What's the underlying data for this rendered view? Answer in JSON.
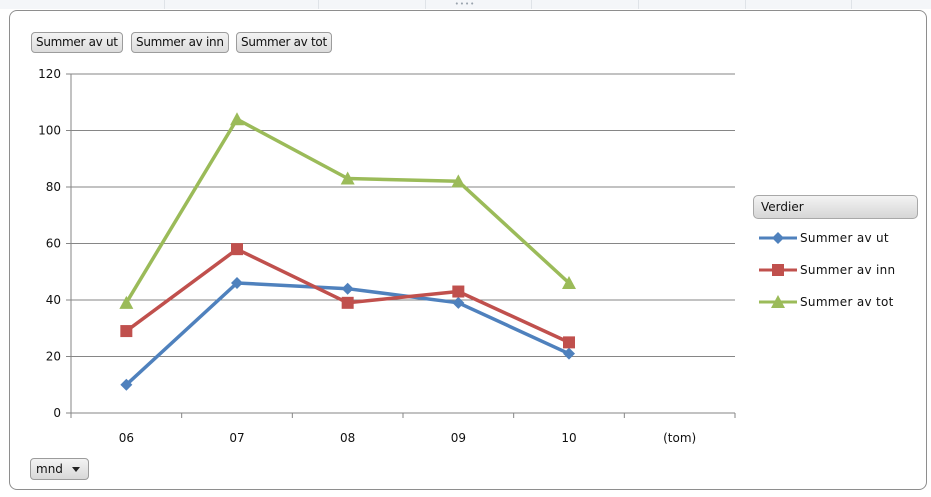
{
  "field_buttons": [
    "Summer av ut",
    "Summer av inn",
    "Summer av tot"
  ],
  "legend": {
    "title": "Verdier",
    "position": "right"
  },
  "axis_field": {
    "label": "mnd",
    "icon": "chevron-down-icon"
  },
  "chart_data": {
    "type": "line",
    "categories": [
      "06",
      "07",
      "08",
      "09",
      "10",
      "(tom)"
    ],
    "ylim": [
      0,
      120
    ],
    "yticks": [
      0,
      20,
      40,
      60,
      80,
      100,
      120
    ],
    "grid": true,
    "series": [
      {
        "name": "Summer av ut",
        "color": "#4f81bd",
        "marker": "diamond",
        "values": [
          10,
          46,
          44,
          39,
          21,
          null
        ]
      },
      {
        "name": "Summer av inn",
        "color": "#c0504d",
        "marker": "square",
        "values": [
          29,
          58,
          39,
          43,
          25,
          null
        ]
      },
      {
        "name": "Summer av tot",
        "color": "#9bbb59",
        "marker": "triangle",
        "values": [
          39,
          104,
          83,
          82,
          46,
          null
        ]
      }
    ]
  }
}
